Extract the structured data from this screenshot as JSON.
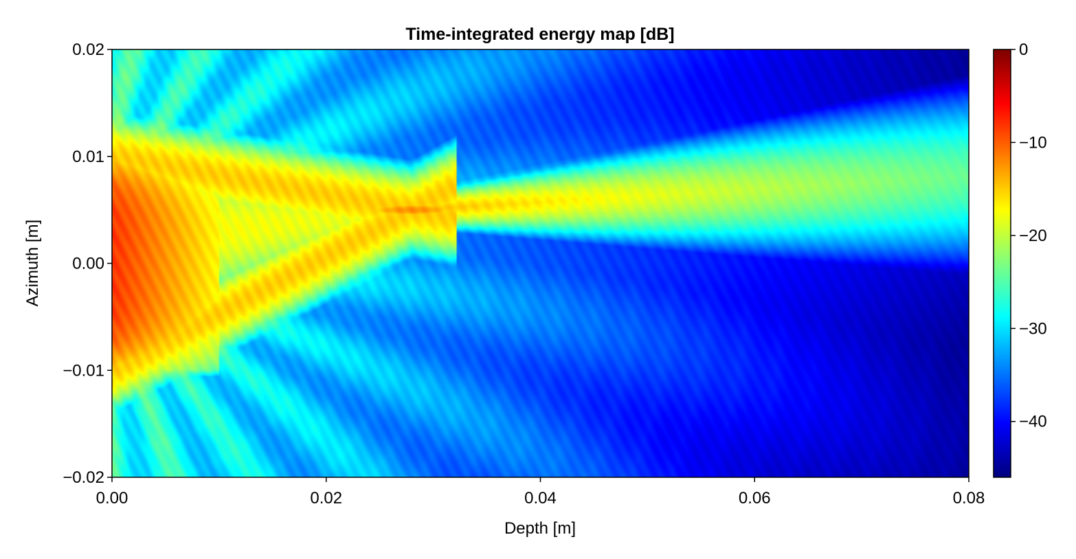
{
  "chart_data": {
    "type": "heatmap",
    "title": "Time-integrated energy map [dB]",
    "xlabel": "Depth [m]",
    "ylabel": "Azimuth [m]",
    "xlim": [
      0.0,
      0.08
    ],
    "ylim": [
      -0.02,
      0.02
    ],
    "x_ticks": [
      "0.00",
      "0.02",
      "0.04",
      "0.06",
      "0.08"
    ],
    "y_ticks": [
      "−0.02",
      "−0.01",
      "0.00",
      "0.01",
      "0.02"
    ],
    "colorbar": {
      "range": [
        -46,
        0
      ],
      "ticks": [
        "0",
        "−10",
        "−20",
        "−30",
        "−40"
      ],
      "tick_values": [
        0,
        -10,
        -20,
        -30,
        -40
      ],
      "colormap": "jet"
    },
    "field_description": {
      "aperture_azimuth_range": [
        -0.01,
        0.01
      ],
      "near_field_level_db": -8,
      "focus": {
        "depth": 0.028,
        "azimuth": 0.005,
        "level_db": -13
      },
      "far_field_floor_db": -45
    }
  }
}
